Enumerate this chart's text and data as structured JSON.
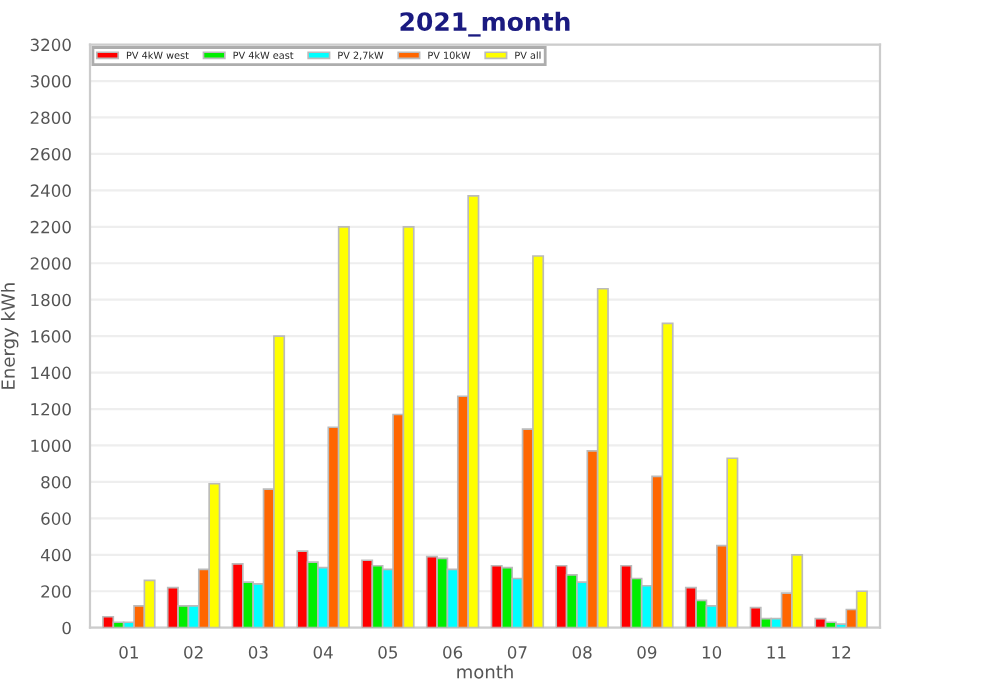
{
  "chart_data": {
    "type": "bar",
    "title": "2021_month",
    "xlabel": "month",
    "ylabel": "Energy kWh",
    "categories": [
      "01",
      "02",
      "03",
      "04",
      "05",
      "06",
      "07",
      "08",
      "09",
      "10",
      "11",
      "12"
    ],
    "series": [
      {
        "name": "PV 4kW west",
        "color": "#ff0000",
        "values": [
          60,
          220,
          350,
          420,
          370,
          390,
          340,
          340,
          340,
          220,
          110,
          50
        ]
      },
      {
        "name": "PV 4kW east",
        "color": "#00ee00",
        "values": [
          30,
          120,
          250,
          360,
          340,
          380,
          330,
          290,
          270,
          150,
          50,
          30
        ]
      },
      {
        "name": "PV 2,7kW",
        "color": "#00ffff",
        "values": [
          30,
          120,
          240,
          330,
          320,
          320,
          270,
          250,
          230,
          120,
          50,
          20
        ]
      },
      {
        "name": "PV 10kW",
        "color": "#ff6600",
        "values": [
          120,
          320,
          760,
          1100,
          1170,
          1270,
          1090,
          970,
          830,
          450,
          190,
          100
        ]
      },
      {
        "name": "PV all",
        "color": "#ffff00",
        "values": [
          260,
          790,
          1600,
          2200,
          2200,
          2370,
          2040,
          1860,
          1670,
          930,
          400,
          200
        ]
      }
    ],
    "ylim": [
      0,
      3200
    ],
    "yticks": [
      0,
      200,
      400,
      600,
      800,
      1000,
      1200,
      1400,
      1600,
      1800,
      2000,
      2200,
      2400,
      2600,
      2800,
      3000,
      3200
    ],
    "grid": "y",
    "legend": "top left"
  }
}
